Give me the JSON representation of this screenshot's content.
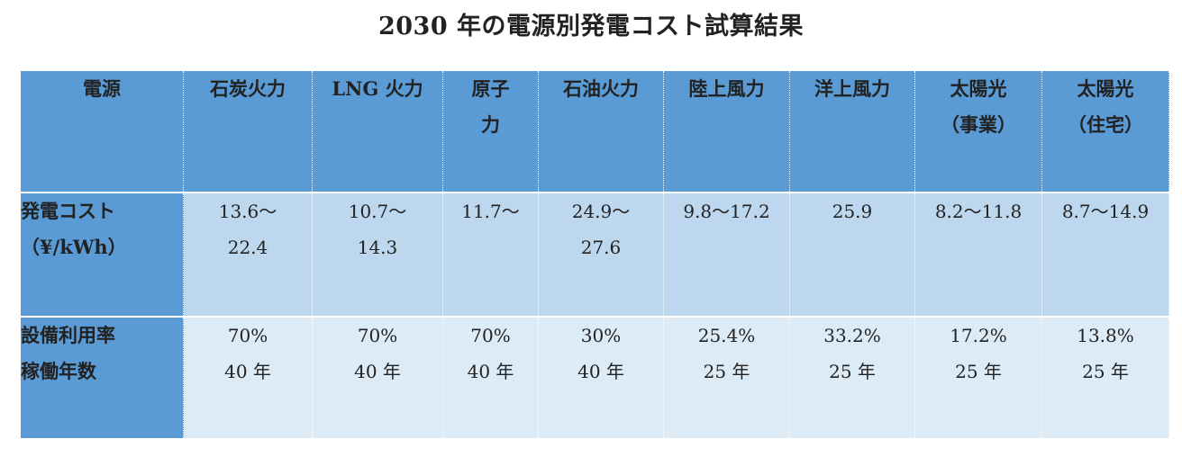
{
  "title": "2030 年の電源別発電コスト試算結果",
  "header": {
    "label": "電源",
    "columns": [
      [
        "石炭火力"
      ],
      [
        "LNG 火力"
      ],
      [
        "原子",
        "力"
      ],
      [
        "石油火力"
      ],
      [
        "陸上風力"
      ],
      [
        "洋上風力"
      ],
      [
        "太陽光",
        "（事業）"
      ],
      [
        "太陽光",
        "（住宅）"
      ]
    ]
  },
  "rows": [
    {
      "label": [
        "発電コスト",
        "（¥/kWh）"
      ],
      "values": [
        [
          "13.6～",
          "22.4"
        ],
        [
          "10.7～",
          "14.3"
        ],
        [
          "11.7～"
        ],
        [
          "24.9～",
          "27.6"
        ],
        [
          "9.8～17.2"
        ],
        [
          "25.9"
        ],
        [
          "8.2～11.8"
        ],
        [
          "8.7～14.9"
        ]
      ]
    },
    {
      "label": [
        "設備利用率",
        "稼働年数"
      ],
      "values": [
        [
          "70%",
          "40 年"
        ],
        [
          "70%",
          "40 年"
        ],
        [
          "70%",
          "40 年"
        ],
        [
          "30%",
          "40 年"
        ],
        [
          "25.4%",
          "25 年"
        ],
        [
          "33.2%",
          "25 年"
        ],
        [
          "17.2%",
          "25 年"
        ],
        [
          "13.8%",
          "25 年"
        ]
      ]
    }
  ],
  "colors": {
    "header_bg": "#5b9bd5",
    "cost_row_bg": "#bdd7ee",
    "util_row_bg": "#ddebf7"
  }
}
